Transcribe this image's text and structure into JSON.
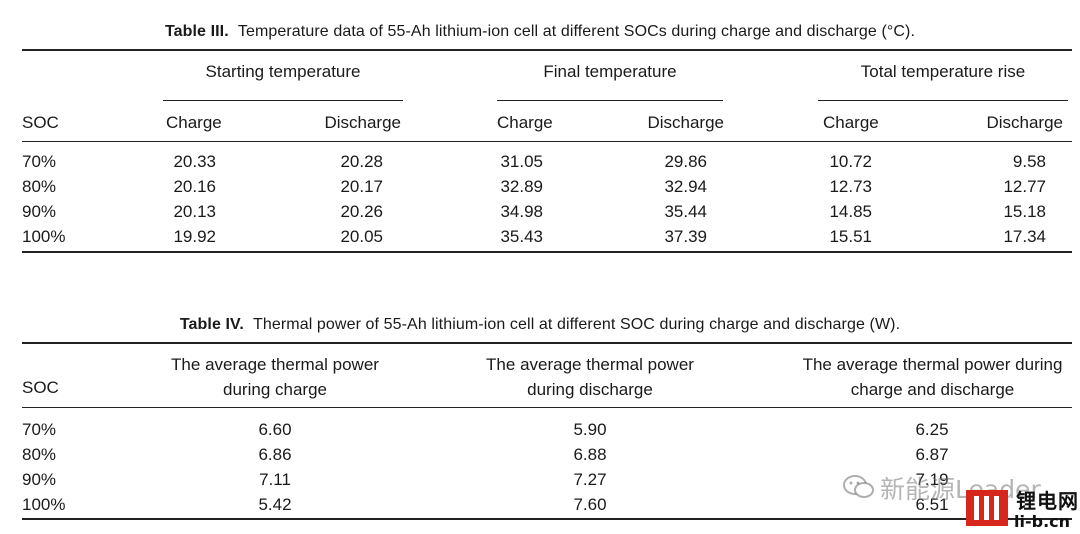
{
  "table3": {
    "caption_label": "Table III.",
    "caption_text": "Temperature data of 55-Ah lithium-ion cell at different SOCs during charge and discharge (°C).",
    "groups": [
      "Starting temperature",
      "Final temperature",
      "Total temperature rise"
    ],
    "subheaders": [
      "Charge",
      "Discharge",
      "Charge",
      "Discharge",
      "Charge",
      "Discharge"
    ],
    "row_header": "SOC",
    "rows": [
      {
        "soc": "70%",
        "values": [
          "20.33",
          "20.28",
          "31.05",
          "29.86",
          "10.72",
          "9.58"
        ]
      },
      {
        "soc": "80%",
        "values": [
          "20.16",
          "20.17",
          "32.89",
          "32.94",
          "12.73",
          "12.77"
        ]
      },
      {
        "soc": "90%",
        "values": [
          "20.13",
          "20.26",
          "34.98",
          "35.44",
          "14.85",
          "15.18"
        ]
      },
      {
        "soc": "100%",
        "values": [
          "19.92",
          "20.05",
          "35.43",
          "37.39",
          "15.51",
          "17.34"
        ]
      }
    ]
  },
  "table4": {
    "caption_label": "Table IV.",
    "caption_text": "Thermal power of 55-Ah lithium-ion cell at different SOC during charge and discharge (W).",
    "row_header": "SOC",
    "headers": [
      [
        "The average thermal power",
        "during charge"
      ],
      [
        "The average thermal power",
        "during discharge"
      ],
      [
        "The average thermal power during",
        "charge and discharge"
      ]
    ],
    "rows": [
      {
        "soc": "70%",
        "values": [
          "6.60",
          "5.90",
          "6.25"
        ]
      },
      {
        "soc": "80%",
        "values": [
          "6.86",
          "6.88",
          "6.87"
        ]
      },
      {
        "soc": "90%",
        "values": [
          "7.11",
          "7.27",
          "7.19"
        ]
      },
      {
        "soc": "100%",
        "values": [
          "5.42",
          "7.60",
          "6.51"
        ]
      }
    ]
  },
  "watermark": {
    "account": "新能源Leader",
    "logo_name": "锂电网",
    "logo_url": "li-b.cn",
    "icon": "wechat-icon"
  }
}
